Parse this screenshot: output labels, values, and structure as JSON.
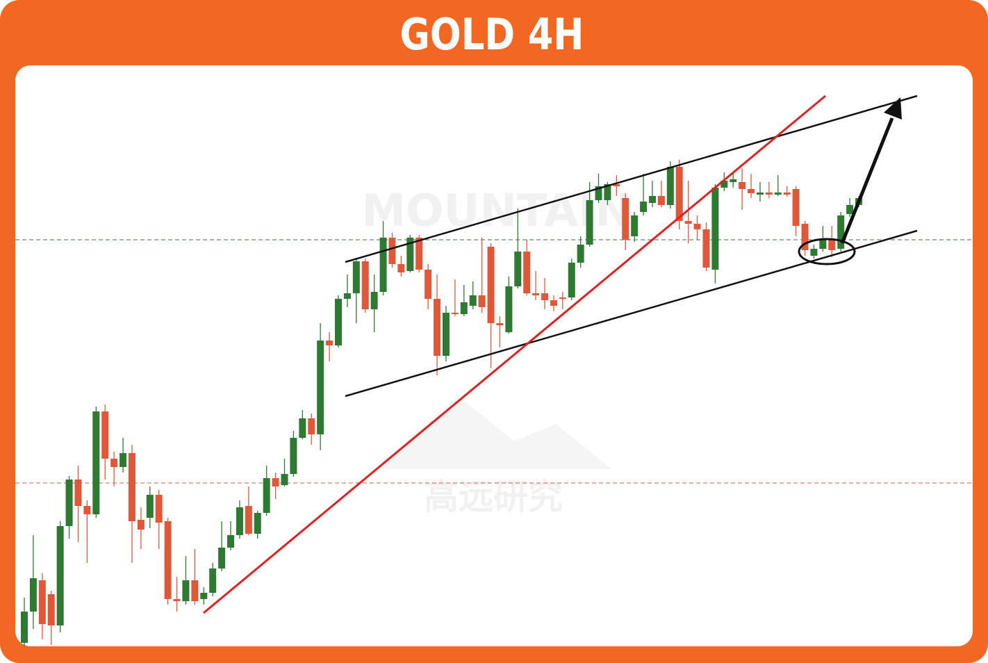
{
  "chart_data": {
    "type": "candlestick",
    "title": "GOLD 4H",
    "watermark": [
      "MOUNTAIN",
      "高远研究"
    ],
    "up_color": "#2e7a33",
    "down_color": "#e0583a",
    "ylim": [
      0,
      836
    ],
    "open": [
      5,
      50,
      95,
      75,
      30,
      173,
      240,
      202,
      190,
      338,
      270,
      258,
      278,
      182,
      185,
      218,
      180,
      68,
      65,
      95,
      68,
      77,
      112,
      142,
      160,
      202,
      162,
      192,
      242,
      232,
      248,
      300,
      328,
      305,
      440,
      433,
      500,
      508,
      554,
      485,
      510,
      588,
      550,
      540,
      588,
      542,
      500,
      418,
      480,
      478,
      490,
      505,
      575,
      465,
      452,
      518,
      568,
      508,
      508,
      498,
      502,
      502,
      552,
      578,
      642,
      642,
      665,
      645,
      590,
      625,
      638,
      648,
      635,
      690,
      612,
      608,
      600,
      542,
      660,
      668,
      668,
      658,
      650,
      653,
      650,
      653,
      658,
      608,
      562,
      572,
      585,
      572,
      622,
      635
    ],
    "high": [
      70,
      160,
      105,
      80,
      180,
      245,
      260,
      210,
      345,
      348,
      280,
      300,
      290,
      200,
      230,
      225,
      185,
      100,
      130,
      140,
      85,
      120,
      180,
      180,
      210,
      230,
      195,
      260,
      250,
      270,
      310,
      340,
      335,
      465,
      452,
      505,
      535,
      558,
      558,
      535,
      612,
      595,
      562,
      592,
      592,
      550,
      535,
      490,
      528,
      520,
      525,
      588,
      580,
      475,
      532,
      630,
      585,
      540,
      530,
      505,
      510,
      558,
      590,
      668,
      680,
      668,
      678,
      652,
      625,
      680,
      670,
      670,
      698,
      700,
      670,
      620,
      610,
      665,
      682,
      680,
      688,
      680,
      668,
      668,
      678,
      662,
      662,
      612,
      578,
      605,
      605,
      625,
      645,
      648
    ],
    "low": [
      0,
      25,
      10,
      2,
      20,
      155,
      150,
      120,
      185,
      240,
      230,
      250,
      120,
      140,
      170,
      140,
      60,
      50,
      60,
      60,
      60,
      72,
      108,
      138,
      155,
      160,
      155,
      188,
      212,
      230,
      244,
      298,
      290,
      282,
      410,
      430,
      488,
      465,
      480,
      452,
      505,
      545,
      532,
      538,
      538,
      485,
      390,
      410,
      475,
      475,
      485,
      480,
      400,
      430,
      450,
      515,
      505,
      498,
      485,
      482,
      485,
      498,
      545,
      575,
      638,
      635,
      648,
      570,
      582,
      620,
      632,
      632,
      630,
      600,
      580,
      585,
      540,
      522,
      655,
      660,
      628,
      645,
      640,
      645,
      648,
      647,
      590,
      562,
      558,
      568,
      560,
      568,
      618,
      632
    ],
    "close": [
      50,
      98,
      32,
      30,
      173,
      240,
      202,
      190,
      338,
      270,
      258,
      278,
      180,
      168,
      218,
      178,
      68,
      65,
      95,
      65,
      77,
      112,
      142,
      160,
      200,
      162,
      192,
      242,
      230,
      248,
      300,
      328,
      305,
      440,
      433,
      500,
      508,
      554,
      485,
      510,
      588,
      550,
      538,
      588,
      542,
      500,
      418,
      480,
      478,
      495,
      505,
      488,
      465,
      462,
      518,
      568,
      508,
      505,
      498,
      490,
      500,
      552,
      578,
      642,
      662,
      665,
      662,
      585,
      620,
      640,
      648,
      635,
      690,
      612,
      608,
      600,
      545,
      660,
      670,
      672,
      658,
      652,
      653,
      650,
      653,
      650,
      605,
      570,
      572,
      585,
      570,
      620,
      635,
      645
    ]
  }
}
